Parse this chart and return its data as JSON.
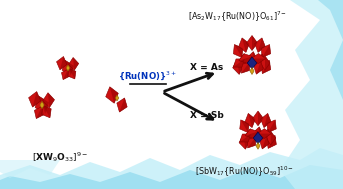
{
  "bg_white": "#ffffff",
  "water_light": "#c5eff8",
  "water_mid": "#8dd9ee",
  "water_dark": "#5ec8e8",
  "red_poly": "#cc1111",
  "dark_red": "#880000",
  "gold_color": "#d4a017",
  "blue_color": "#1a237e",
  "arrow_color": "#111111",
  "text_color": "#111111",
  "cyan_text": "#0055aa",
  "label_bl": "[XW$_9$O$_{33}$]$^{9-}$",
  "label_tr": "[As$_2$W$_{17}${Ru(NO)}O$_{61}$]$^{7-}$",
  "label_br": "[SbW$_{17}${Ru(NO)}O$_{59}$]$^{10-}$",
  "label_reagent": "{Ru(NO)}$^{3+}$",
  "label_x_as": "X = As",
  "label_x_sb": "X = Sb",
  "figsize": [
    3.43,
    1.89
  ],
  "dpi": 100
}
